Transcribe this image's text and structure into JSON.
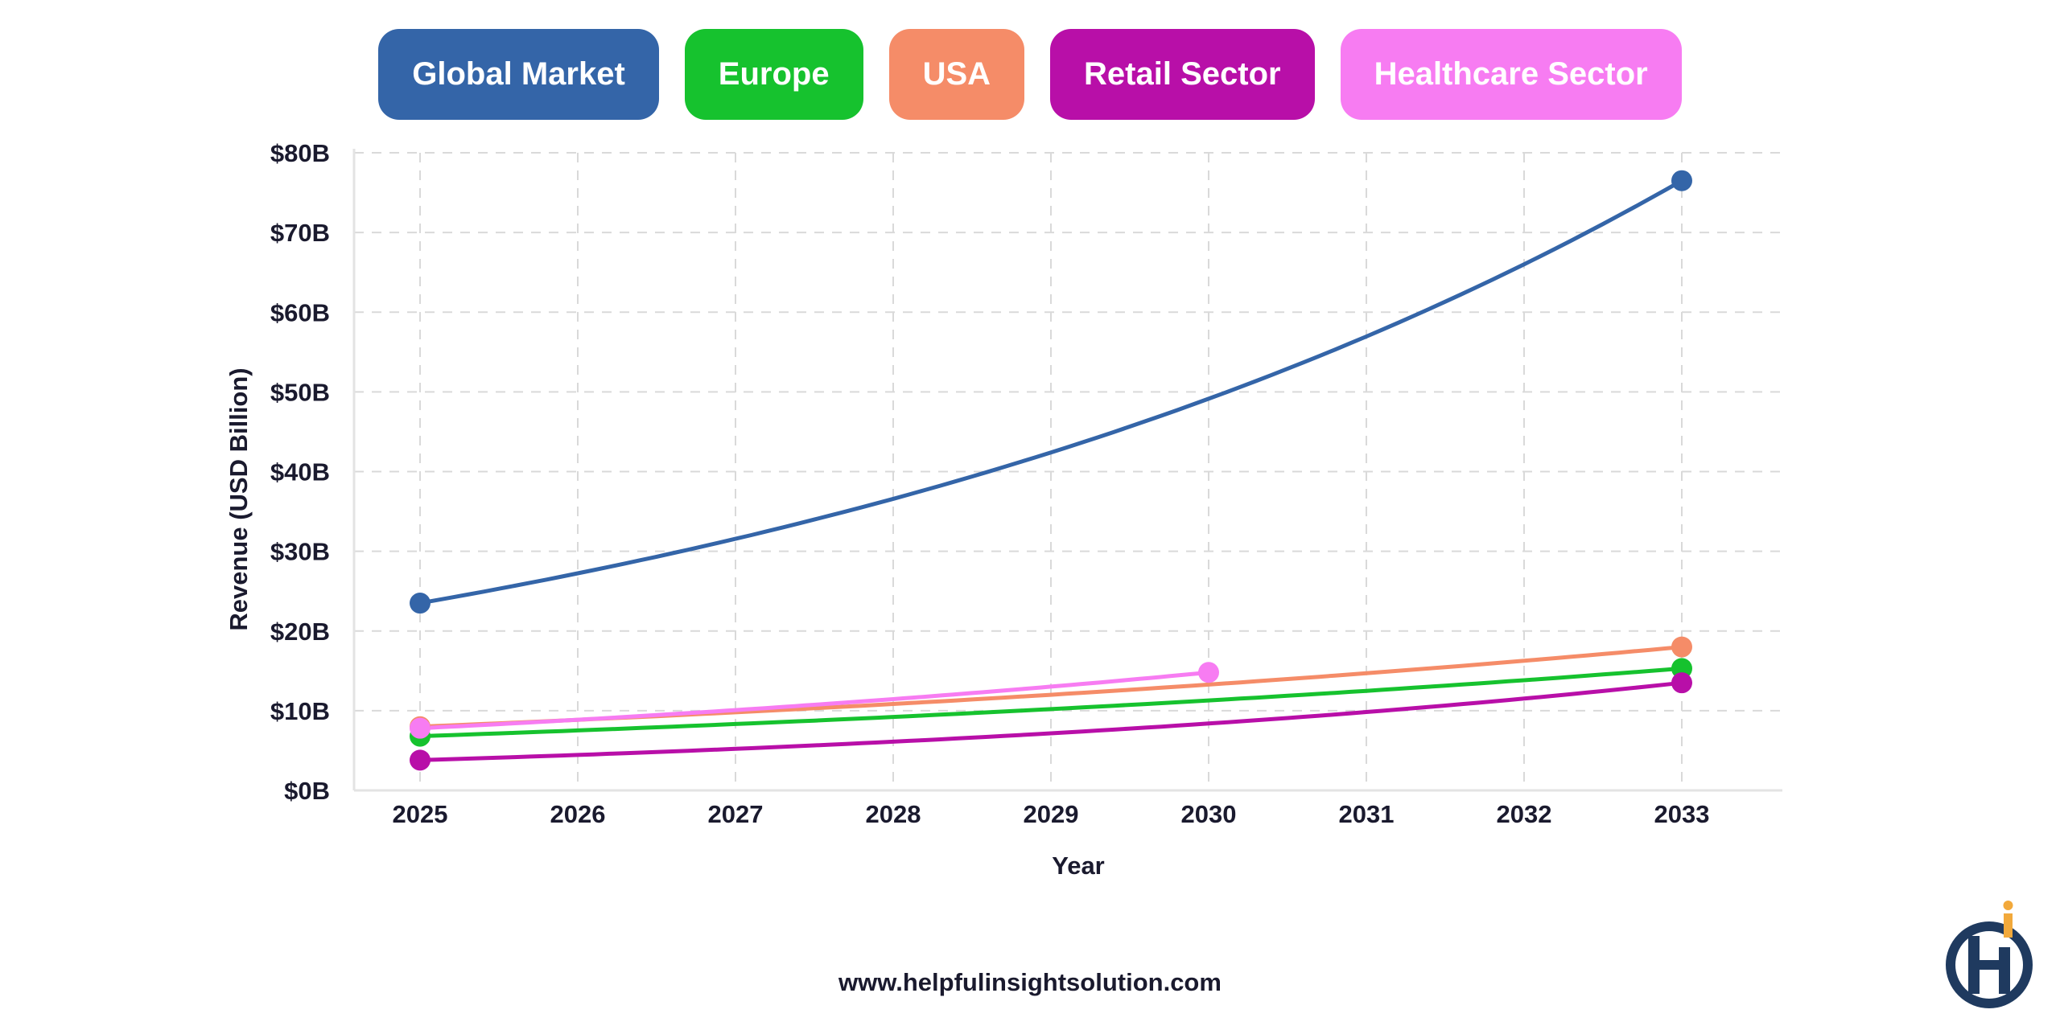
{
  "chart_data": {
    "type": "line",
    "title": "",
    "xlabel": "Year",
    "ylabel": "Revenue (USD Billion)",
    "x": [
      2025,
      2026,
      2027,
      2028,
      2029,
      2030,
      2031,
      2032,
      2033
    ],
    "ylim": [
      0,
      80
    ],
    "y_ticks": [
      "$0B",
      "$10B",
      "$20B",
      "$30B",
      "$40B",
      "$50B",
      "$60B",
      "$70B",
      "$80B"
    ],
    "grid": true,
    "legend_position": "top",
    "series": [
      {
        "name": "Global Market",
        "color": "#3465a8",
        "x": [
          2025,
          2033
        ],
        "values": [
          23.5,
          76.5
        ]
      },
      {
        "name": "Europe",
        "color": "#16c22e",
        "x": [
          2025,
          2033
        ],
        "values": [
          6.8,
          15.3
        ]
      },
      {
        "name": "USA",
        "color": "#f58c68",
        "x": [
          2025,
          2033
        ],
        "values": [
          8.0,
          18.0
        ]
      },
      {
        "name": "Retail Sector",
        "color": "#b80fa8",
        "x": [
          2025,
          2033
        ],
        "values": [
          3.8,
          13.5
        ]
      },
      {
        "name": "Healthcare Sector",
        "color": "#f77cf2",
        "x": [
          2025,
          2030
        ],
        "values": [
          7.8,
          14.8
        ]
      }
    ]
  },
  "footer": {
    "website": "www.helpfulinsightsolution.com"
  },
  "logo": {
    "icon": "helpful-insight-logo-icon",
    "colors": [
      "#1f3a5f",
      "#f2a93b"
    ]
  }
}
